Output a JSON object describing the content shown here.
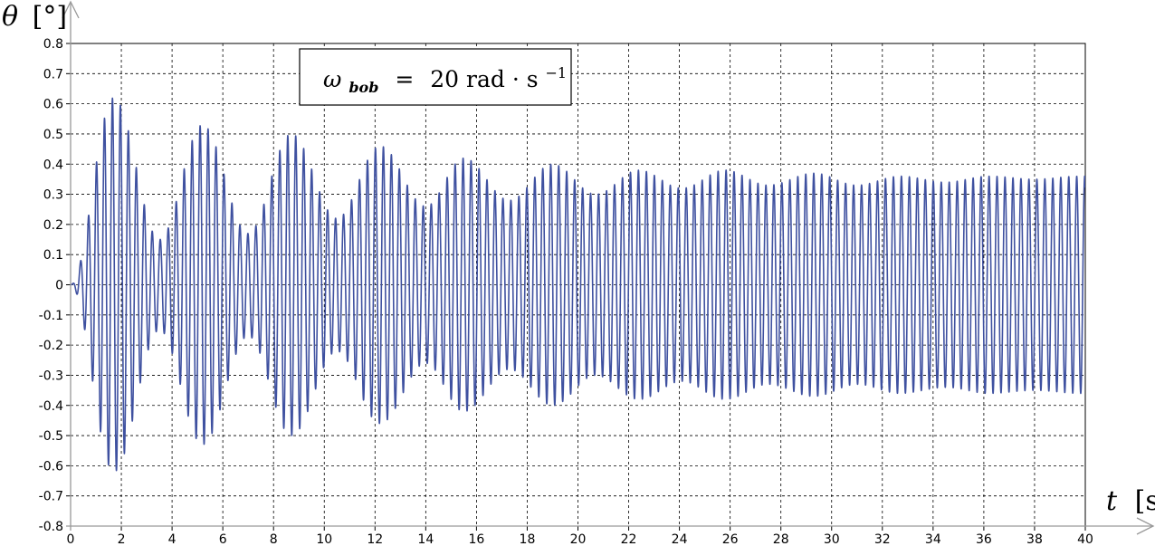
{
  "chart_data": {
    "type": "line",
    "ylabel": {
      "symbol": "θ",
      "unit": "[°]"
    },
    "xlabel": {
      "symbol": "t",
      "unit": "[s]"
    },
    "annotation": {
      "symbol": "ω",
      "subscript": "bob",
      "equals": "=",
      "value": "20 rad · s",
      "superscript": "−1"
    },
    "xlim": [
      0,
      40
    ],
    "ylim": [
      -0.8,
      0.8
    ],
    "x_ticks": [
      0,
      2,
      4,
      6,
      8,
      10,
      12,
      14,
      16,
      18,
      20,
      22,
      24,
      26,
      28,
      30,
      32,
      34,
      36,
      38,
      40
    ],
    "y_ticks": [
      0.8,
      0.7,
      0.6,
      0.5,
      0.4,
      0.3,
      0.2,
      0.1,
      0,
      -0.1,
      -0.2,
      -0.3,
      -0.4,
      -0.5,
      -0.6,
      -0.7,
      -0.8
    ],
    "grid": true,
    "series": [
      {
        "color": "#3f51a0",
        "carrier_frequency_rad_per_s": 20,
        "envelope_peaks": [
          {
            "t": 1.7,
            "amplitude": 0.62
          },
          {
            "t": 5.2,
            "amplitude": 0.53
          },
          {
            "t": 8.7,
            "amplitude": 0.5
          },
          {
            "t": 12.2,
            "amplitude": 0.46
          },
          {
            "t": 15.5,
            "amplitude": 0.42
          },
          {
            "t": 19.0,
            "amplitude": 0.4
          },
          {
            "t": 22.4,
            "amplitude": 0.38
          },
          {
            "t": 25.8,
            "amplitude": 0.38
          },
          {
            "t": 29.3,
            "amplitude": 0.37
          },
          {
            "t": 32.7,
            "amplitude": 0.36
          },
          {
            "t": 36.2,
            "amplitude": 0.36
          },
          {
            "t": 39.8,
            "amplitude": 0.36
          }
        ],
        "envelope_troughs": [
          {
            "t": 0.0,
            "amplitude": 0.0
          },
          {
            "t": 3.5,
            "amplitude": 0.15
          },
          {
            "t": 7.0,
            "amplitude": 0.17
          },
          {
            "t": 10.5,
            "amplitude": 0.22
          },
          {
            "t": 14.0,
            "amplitude": 0.26
          },
          {
            "t": 17.3,
            "amplitude": 0.28
          },
          {
            "t": 20.7,
            "amplitude": 0.3
          },
          {
            "t": 24.1,
            "amplitude": 0.32
          },
          {
            "t": 27.5,
            "amplitude": 0.33
          },
          {
            "t": 31.0,
            "amplitude": 0.33
          },
          {
            "t": 34.5,
            "amplitude": 0.34
          },
          {
            "t": 38.0,
            "amplitude": 0.35
          }
        ]
      }
    ]
  }
}
